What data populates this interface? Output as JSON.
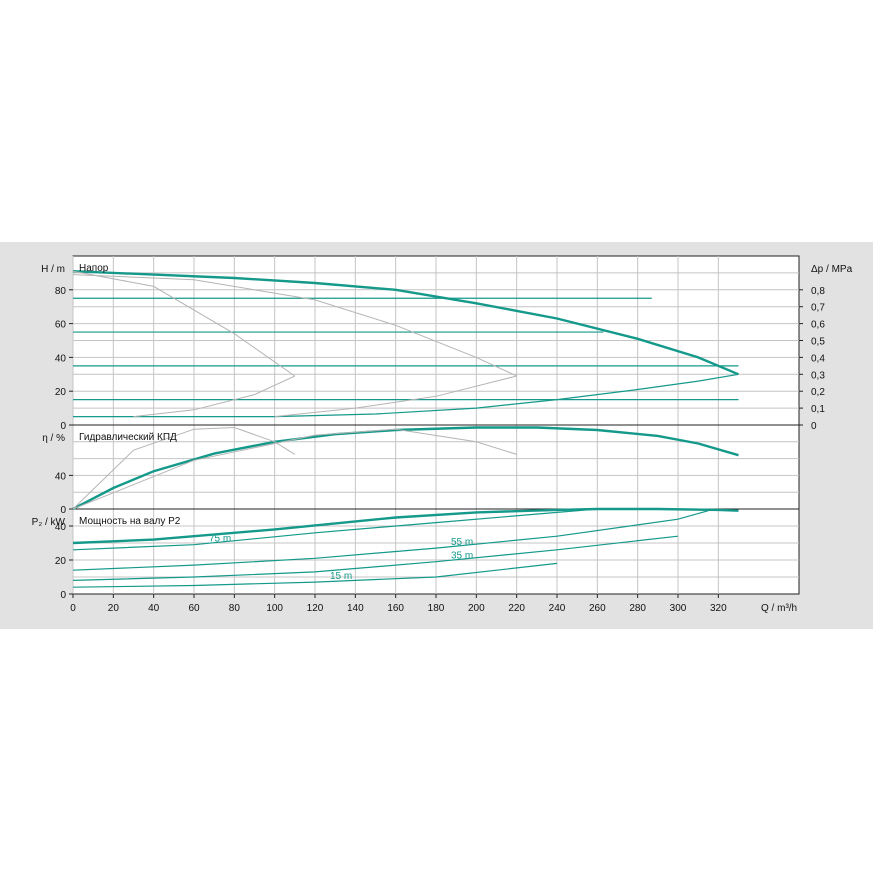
{
  "chart_data": {
    "type": "line",
    "x_axis": {
      "label": "Q / m³/h",
      "range": [
        0,
        360
      ],
      "ticks": [
        0,
        20,
        40,
        60,
        80,
        100,
        120,
        140,
        160,
        180,
        200,
        220,
        240,
        260,
        280,
        300,
        320
      ]
    },
    "panels": [
      {
        "title": "Напор",
        "ylabel_left": "H / m",
        "ylabel_right": "Δp / MPa",
        "y_range": [
          0,
          100
        ],
        "y_ticks": [
          0,
          20,
          40,
          60,
          80
        ],
        "y2_range": [
          0,
          1.0
        ],
        "y2_ticks": [
          "0",
          "0,1",
          "0,2",
          "0,3",
          "0,4",
          "0,5",
          "0,6",
          "0,7",
          "0,8"
        ],
        "series": [
          {
            "role": "max_curve",
            "x": [
              0,
              40,
              80,
              120,
              160,
              200,
              240,
              280,
              310,
              330
            ],
            "y": [
              91,
              89,
              87,
              84,
              80,
              72,
              63,
              51,
              40,
              30
            ]
          },
          {
            "role": "min_curve",
            "x": [
              0,
              100,
              150,
              200,
              240,
              280,
              310,
              330
            ],
            "y": [
              5,
              5,
              6.5,
              10,
              15,
              21,
              26,
              30
            ]
          },
          {
            "role": "setpoint",
            "level": 75,
            "x": [
              0,
              287
            ]
          },
          {
            "role": "setpoint",
            "level": 55,
            "x": [
              0,
              263
            ]
          },
          {
            "role": "setpoint",
            "level": 35,
            "x": [
              0,
              330
            ]
          },
          {
            "role": "setpoint",
            "level": 15,
            "x": [
              0,
              330
            ]
          },
          {
            "role": "reference",
            "x": [
              0,
              40,
              80,
              110
            ],
            "y": [
              91,
              82,
              54,
              29
            ]
          },
          {
            "role": "reference",
            "x": [
              30,
              60,
              90,
              110
            ],
            "y": [
              5,
              9,
              18,
              29
            ]
          },
          {
            "role": "reference",
            "x": [
              0,
              60,
              120,
              160,
              200,
              220
            ],
            "y": [
              89,
              86,
              74,
              59,
              40,
              29
            ]
          },
          {
            "role": "reference",
            "x": [
              100,
              140,
              180,
              220
            ],
            "y": [
              5,
              10,
              17,
              29
            ]
          }
        ]
      },
      {
        "title": "Гидравлический КПД",
        "ylabel_left": "η / %",
        "y_range": [
          0,
          100
        ],
        "y_ticks": [
          0,
          40
        ],
        "series": [
          {
            "role": "max_curve",
            "x": [
              0,
              20,
              40,
              70,
              100,
              130,
              160,
              200,
              230,
              260,
              290,
              310,
              330
            ],
            "y": [
              0,
              25,
              45,
              66,
              80,
              89,
              94,
              97,
              97,
              94,
              87,
              78,
              64
            ]
          },
          {
            "role": "reference",
            "x": [
              0,
              30,
              60,
              80,
              100,
              110
            ],
            "y": [
              0,
              70,
              95,
              97,
              80,
              65
            ]
          },
          {
            "role": "reference",
            "x": [
              0,
              60,
              120,
              160,
              200,
              220
            ],
            "y": [
              0,
              58,
              88,
              95,
              80,
              65
            ]
          }
        ]
      },
      {
        "title": "Мощность на валу P2",
        "ylabel_left": "P₂ / kW",
        "y_range": [
          0,
          50
        ],
        "y_ticks": [
          0,
          20,
          40
        ],
        "series": [
          {
            "role": "max_curve",
            "x": [
              0,
              40,
              100,
              160,
              200,
              240,
              260,
              290,
              320,
              330
            ],
            "y": [
              30,
              32,
              38,
              45,
              48,
              49.5,
              50,
              50,
              49.5,
              49
            ]
          },
          {
            "role": "setpoint",
            "name": "75 m",
            "x": [
              0,
              60,
              120,
              180,
              260
            ],
            "y": [
              26,
              29,
              36,
              42,
              50
            ]
          },
          {
            "role": "setpoint",
            "name": "55 m",
            "x": [
              0,
              60,
              120,
              180,
              240,
              300,
              315
            ],
            "y": [
              14,
              17,
              21,
              27,
              34,
              44,
              49
            ]
          },
          {
            "role": "setpoint",
            "name": "35 m",
            "x": [
              0,
              60,
              120,
              180,
              240,
              300
            ],
            "y": [
              8,
              10,
              13,
              19,
              26,
              34
            ]
          },
          {
            "role": "setpoint",
            "name": "15 m",
            "x": [
              0,
              60,
              120,
              180,
              240
            ],
            "y": [
              4,
              5,
              7,
              10,
              18
            ]
          }
        ],
        "annotations": [
          "75 m",
          "55 m",
          "35 m",
          "15 m"
        ]
      }
    ]
  }
}
